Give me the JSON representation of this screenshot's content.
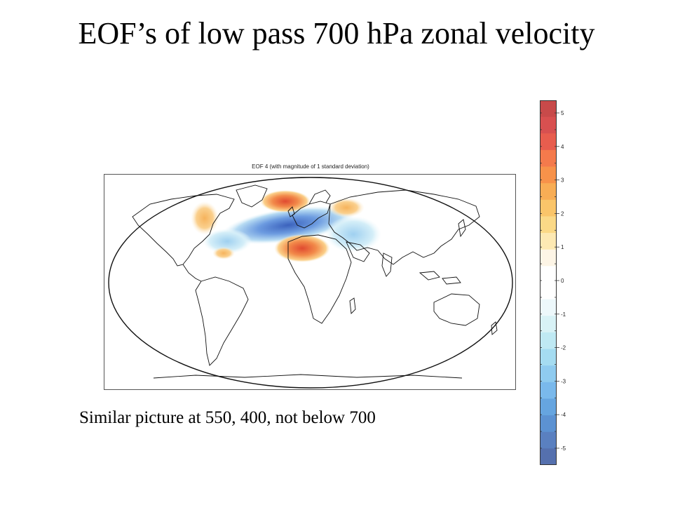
{
  "slide": {
    "title": "EOF’s of low pass 700 hPa zonal velocity",
    "caption": "Similar picture at 550, 400, not below 700"
  },
  "map": {
    "title": "EOF 4  (with magnitude of 1 standard deviation)"
  },
  "colorbar": {
    "tick_labels": [
      "5",
      "4",
      "3",
      "2",
      "1",
      "0",
      "-1",
      "-2",
      "-3",
      "-4",
      "-5"
    ],
    "colors": [
      "#c84a4a",
      "#d85050",
      "#e85d4e",
      "#f47a4c",
      "#f7924a",
      "#f8ad55",
      "#fac56a",
      "#fbd987",
      "#fde9b3",
      "#fdf5e6",
      "#ffffff",
      "#ffffff",
      "#edf8fb",
      "#d8f2f6",
      "#bfe9f3",
      "#a5dcf1",
      "#8fcbef",
      "#7ab9ec",
      "#66a5e0",
      "#5c92d2",
      "#5a80c0",
      "#5570ae"
    ]
  },
  "colors": {
    "positive_accent": "#e35b3c",
    "negative_accent": "#3b6cc4"
  }
}
